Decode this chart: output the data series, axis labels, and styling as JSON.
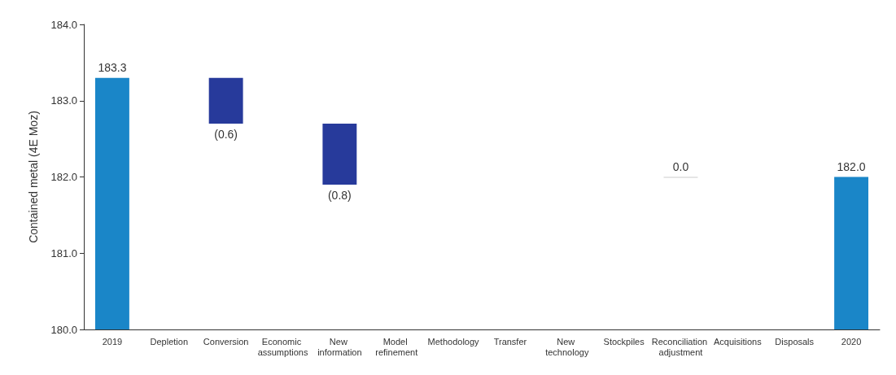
{
  "chart_data": {
    "type": "bar",
    "ylabel": "Contained metal (4E Moz)",
    "categories": [
      "2019",
      "Depletion",
      "Conversion",
      "Economic assumptions",
      "New information",
      "Model refinement",
      "Methodology",
      "Transfer",
      "New technology",
      "Stockpiles",
      "Reconciliation adjustment",
      "Acquisitions",
      "Disposals",
      "2020"
    ],
    "values": [
      183.3,
      null,
      -0.6,
      null,
      -0.8,
      null,
      null,
      null,
      null,
      null,
      0.0,
      null,
      null,
      182.0
    ],
    "base": [
      null,
      null,
      183.3,
      null,
      182.7,
      null,
      null,
      null,
      null,
      null,
      182.0,
      null,
      null,
      null
    ],
    "colors": [
      "#1a86c8",
      null,
      "#273a9b",
      null,
      "#273a9b",
      null,
      null,
      null,
      null,
      null,
      "#cccccc",
      null,
      null,
      "#1a86c8"
    ],
    "value_labels": [
      "183.3",
      null,
      "(0.6)",
      null,
      "(0.8)",
      null,
      null,
      null,
      null,
      null,
      "0.0",
      null,
      null,
      "182.0"
    ],
    "ylim": [
      180,
      184
    ],
    "yticks": [
      {
        "value": 180,
        "label": "180.0"
      },
      {
        "value": 181,
        "label": "181.0"
      },
      {
        "value": 182,
        "label": "182.0"
      },
      {
        "value": 183,
        "label": "183.0"
      },
      {
        "value": 184,
        "label": "184.0"
      }
    ],
    "grid": false
  }
}
